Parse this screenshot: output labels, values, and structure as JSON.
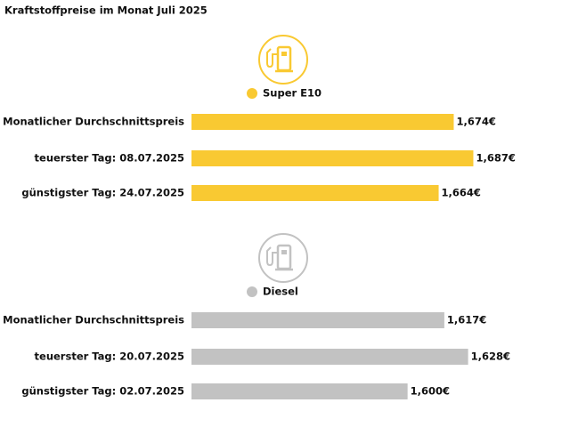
{
  "title": "Kraftstoffpreise im Monat Juli 2025",
  "chart_data": [
    {
      "type": "bar",
      "orientation": "horizontal",
      "categories": [
        "Monatlicher Durchschnittspreis",
        "teuerster Tag: 08.07.2025",
        "günstigster Tag: 24.07.2025"
      ],
      "series": [
        {
          "name": "Super E10",
          "color": "#f9c932",
          "values": [
            1.674,
            1.687,
            1.664
          ],
          "value_labels": [
            "1,674€",
            "1,687€",
            "1,664€"
          ]
        }
      ],
      "xlim": [
        1.5,
        1.695
      ]
    },
    {
      "type": "bar",
      "orientation": "horizontal",
      "categories": [
        "Monatlicher Durchschnittspreis",
        "teuerster Tag: 20.07.2025",
        "günstigster Tag: 02.07.2025"
      ],
      "series": [
        {
          "name": "Diesel",
          "color": "#c2c2c2",
          "values": [
            1.617,
            1.628,
            1.6
          ],
          "value_labels": [
            "1,617€",
            "1,628€",
            "1,600€"
          ]
        }
      ],
      "xlim": [
        1.5,
        1.636
      ]
    }
  ]
}
